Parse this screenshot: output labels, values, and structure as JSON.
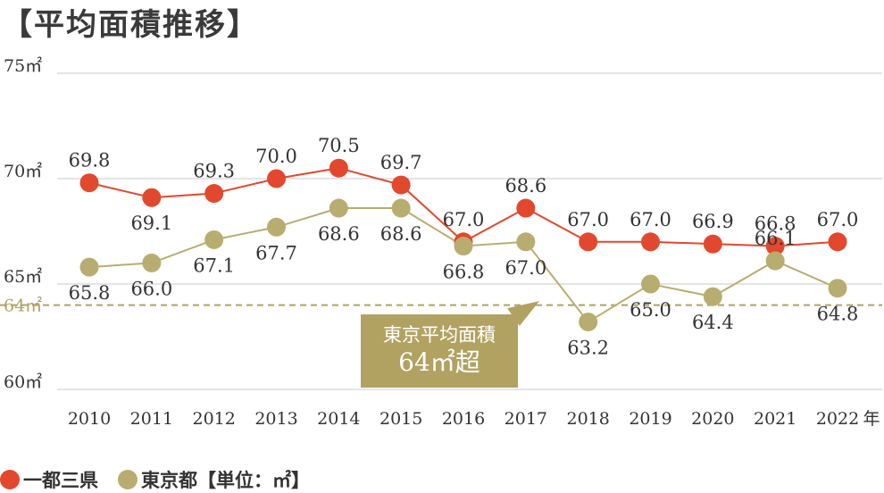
{
  "title": "【平均面積推移】",
  "legend": {
    "unit_label": "【単位：㎡】"
  },
  "callout": {
    "line1": "東京平均面積",
    "line2": "64㎡超"
  },
  "colors": {
    "series_a": "#e2482d",
    "series_b": "#b8ad70",
    "ref_line": "#b1a262",
    "grid": "#c8c8c8"
  },
  "chart_data": {
    "type": "line",
    "x": [
      "2010",
      "2011",
      "2012",
      "2013",
      "2014",
      "2015",
      "2016",
      "2017",
      "2018",
      "2019",
      "2020",
      "2021",
      "2022"
    ],
    "x_unit": "年",
    "ylim": [
      60,
      75
    ],
    "yticks": [
      {
        "value": 75,
        "label": "75㎡"
      },
      {
        "value": 70,
        "label": "70㎡"
      },
      {
        "value": 65,
        "label": "65㎡"
      },
      {
        "value": 60,
        "label": "60㎡"
      }
    ],
    "reference_line": {
      "value": 64,
      "label": "64㎡"
    },
    "grid": true,
    "legend_position": "bottom-left",
    "series": [
      {
        "name": "一都三県",
        "values": [
          69.8,
          69.1,
          69.3,
          70.0,
          70.5,
          69.7,
          67.0,
          68.6,
          67.0,
          67.0,
          66.9,
          66.8,
          67.0
        ]
      },
      {
        "name": "東京都",
        "values": [
          65.8,
          66.0,
          67.1,
          67.7,
          68.6,
          68.6,
          66.8,
          67.0,
          63.2,
          65.0,
          64.4,
          66.1,
          64.8
        ]
      }
    ]
  }
}
